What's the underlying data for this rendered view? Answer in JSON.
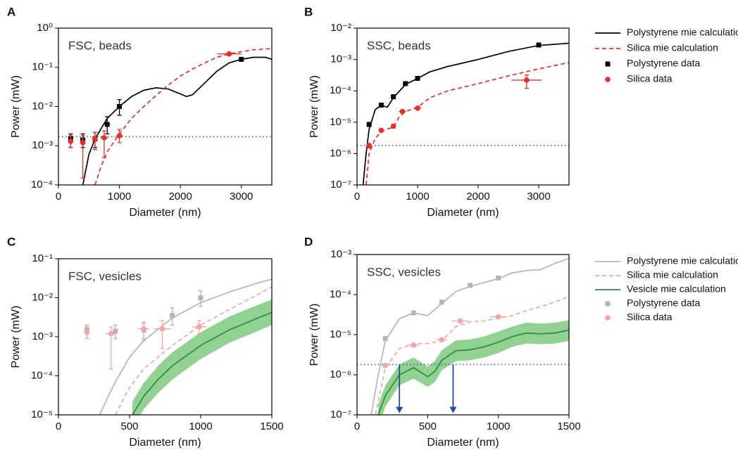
{
  "chart_data": [
    {
      "type": "line",
      "label": "A",
      "annotation": "FSC, beads",
      "xlabel": "Diameter (nm)",
      "ylabel": "Power (mW)",
      "xlim": [
        0,
        3500
      ],
      "xticks": [
        0,
        1000,
        2000,
        3000
      ],
      "log_y": true,
      "ylim": [
        0.0001,
        1
      ],
      "yticks": [
        {
          "value": 0.0001,
          "label": "10⁻⁴"
        },
        {
          "value": 0.001,
          "label": "10⁻³"
        },
        {
          "value": 0.01,
          "label": "10⁻²"
        },
        {
          "value": 0.1,
          "label": "10⁻¹"
        },
        {
          "value": 1,
          "label": "10⁰"
        }
      ],
      "reference_line": {
        "value": 0.0017,
        "color": "#3b5ba5"
      },
      "series": [
        {
          "mode": "line",
          "color": "#000000",
          "x": [
            400,
            500,
            600,
            800,
            1000,
            1200,
            1400,
            1600,
            1800,
            2000,
            2100,
            2200,
            2400,
            2600,
            2800,
            3000,
            3200,
            3400,
            3500
          ],
          "values": [
            0.0001,
            0.0006,
            0.0015,
            0.005,
            0.01,
            0.018,
            0.026,
            0.03,
            0.028,
            0.021,
            0.018,
            0.02,
            0.04,
            0.08,
            0.13,
            0.16,
            0.18,
            0.18,
            0.16
          ]
        },
        {
          "mode": "line",
          "dash": true,
          "color": "#e8302a",
          "x": [
            600,
            700,
            800,
            1000,
            1200,
            1400,
            1600,
            1800,
            2000,
            2200,
            2400,
            2600,
            2800,
            3000,
            3200,
            3500
          ],
          "values": [
            0.0001,
            0.0003,
            0.0007,
            0.002,
            0.005,
            0.01,
            0.019,
            0.035,
            0.06,
            0.09,
            0.13,
            0.18,
            0.22,
            0.25,
            0.28,
            0.3
          ]
        },
        {
          "mode": "markers",
          "marker": "square",
          "color": "#000000",
          "x": [
            200,
            400,
            600,
            800,
            1000,
            3000
          ],
          "values": [
            0.0015,
            0.0014,
            0.0015,
            0.0035,
            0.01,
            0.16
          ],
          "y_low": [
            0.0009,
            0.0009,
            0.0009,
            0.002,
            0.006,
            0.15
          ],
          "y_high": [
            0.002,
            0.002,
            0.0022,
            0.0055,
            0.015,
            0.17
          ]
        },
        {
          "mode": "markers",
          "marker": "circle",
          "color": "#e8302a",
          "x": [
            200,
            400,
            600,
            750,
            1000,
            2800
          ],
          "values": [
            0.0013,
            0.0012,
            0.0015,
            0.0016,
            0.0018,
            0.22
          ],
          "y_low": [
            0.0009,
            0.00015,
            0.0008,
            0.0005,
            0.0012,
            0.2
          ],
          "y_high": [
            0.0018,
            0.0018,
            0.0022,
            0.0024,
            0.0026,
            0.24
          ],
          "x_err": [
            20,
            20,
            30,
            60,
            50,
            200
          ]
        }
      ]
    },
    {
      "type": "line",
      "label": "B",
      "annotation": "SSC, beads",
      "xlabel": "Diameter (nm)",
      "ylabel": "Power (mW)",
      "xlim": [
        0,
        3500
      ],
      "xticks": [
        0,
        1000,
        2000,
        3000
      ],
      "log_y": true,
      "ylim": [
        1e-07,
        0.01
      ],
      "yticks": [
        {
          "value": 1e-07,
          "label": "10⁻⁷"
        },
        {
          "value": 1e-06,
          "label": "10⁻⁶"
        },
        {
          "value": 1e-05,
          "label": "10⁻⁵"
        },
        {
          "value": 0.0001,
          "label": "10⁻⁴"
        },
        {
          "value": 0.001,
          "label": "10⁻³"
        },
        {
          "value": 0.01,
          "label": "10⁻²"
        }
      ],
      "reference_line": {
        "value": 1.8e-06,
        "color": "#3b5ba5"
      },
      "legend": "outside right",
      "series": [
        {
          "name": "Polystyrene mie calculation",
          "mode": "line",
          "color": "#000000",
          "x": [
            100,
            150,
            200,
            300,
            400,
            500,
            600,
            800,
            1000,
            1200,
            1500,
            2000,
            2500,
            3000,
            3500
          ],
          "values": [
            1e-07,
            1e-06,
            6e-06,
            2.5e-05,
            3.5e-05,
            3e-05,
            6e-05,
            0.00016,
            0.00025,
            0.0004,
            0.0006,
            0.001,
            0.0018,
            0.0028,
            0.0033
          ]
        },
        {
          "name": "Silica mie calculation",
          "mode": "line",
          "dash": true,
          "color": "#e8302a",
          "x": [
            150,
            200,
            300,
            400,
            500,
            600,
            700,
            800,
            1000,
            1200,
            1500,
            2000,
            2500,
            3000,
            3500
          ],
          "values": [
            1e-07,
            1e-06,
            3e-06,
            5e-06,
            6e-06,
            7e-06,
            1.5e-05,
            2.2e-05,
            3e-05,
            6e-05,
            0.0001,
            0.00017,
            0.0003,
            0.0005,
            0.0008
          ]
        },
        {
          "name": "Polystyrene data",
          "mode": "markers",
          "marker": "square",
          "color": "#000000",
          "x": [
            200,
            400,
            600,
            800,
            1000,
            3000
          ],
          "values": [
            8.5e-06,
            3.5e-05,
            6.5e-05,
            0.00017,
            0.00025,
            0.0029
          ]
        },
        {
          "name": "Silica data",
          "mode": "markers",
          "marker": "circle",
          "color": "#e8302a",
          "x": [
            200,
            400,
            600,
            750,
            1000,
            2800
          ],
          "values": [
            1.8e-06,
            5.5e-06,
            7.5e-06,
            2.2e-05,
            2.8e-05,
            0.00022
          ],
          "y_low": [
            1.5e-06,
            5e-06,
            6.5e-06,
            2e-05,
            2.6e-05,
            0.00012
          ],
          "y_high": [
            2.1e-06,
            6e-06,
            8.5e-06,
            2.4e-05,
            3e-05,
            0.00032
          ],
          "x_err": [
            20,
            30,
            30,
            60,
            60,
            250
          ]
        }
      ]
    },
    {
      "type": "line",
      "label": "C",
      "annotation": "FSC, vesicles",
      "xlabel": "Diameter (nm)",
      "ylabel": "Power (mW)",
      "xlim": [
        0,
        1500
      ],
      "xticks": [
        0,
        500,
        1000,
        1500
      ],
      "log_y": true,
      "ylim": [
        1e-05,
        0.1
      ],
      "yticks": [
        {
          "value": 1e-05,
          "label": "10⁻⁵"
        },
        {
          "value": 0.0001,
          "label": "10⁻⁴"
        },
        {
          "value": 0.001,
          "label": "10⁻³"
        },
        {
          "value": 0.01,
          "label": "10⁻²"
        },
        {
          "value": 0.1,
          "label": "10⁻¹"
        }
      ],
      "series": [
        {
          "mode": "line",
          "color": "#b5b5b5",
          "x": [
            290,
            350,
            400,
            500,
            600,
            800,
            1000,
            1200,
            1400,
            1500
          ],
          "values": [
            1e-05,
            3e-05,
            7e-05,
            0.0003,
            0.0008,
            0.003,
            0.0075,
            0.014,
            0.024,
            0.03
          ]
        },
        {
          "mode": "line",
          "dash": true,
          "color": "#f4a5a5",
          "x": [
            400,
            500,
            600,
            800,
            1000,
            1200,
            1400,
            1500
          ],
          "values": [
            1e-05,
            5e-05,
            0.00015,
            0.0006,
            0.002,
            0.005,
            0.012,
            0.019
          ]
        },
        {
          "mode": "line",
          "color": "#2e8b3e",
          "band_color": "#6cc26c",
          "x": [
            520,
            600,
            700,
            800,
            1000,
            1200,
            1400,
            1500
          ],
          "values": [
            1e-05,
            3e-05,
            8e-05,
            0.00018,
            0.0006,
            0.0015,
            0.003,
            0.0042
          ],
          "lower": [
            4.5e-06,
            1.4e-05,
            3.6e-05,
            8e-05,
            0.00027,
            0.0007,
            0.0014,
            0.002
          ],
          "upper": [
            2.2e-05,
            6.6e-05,
            0.00018,
            0.0004,
            0.0013,
            0.0033,
            0.0065,
            0.009
          ]
        },
        {
          "mode": "markers",
          "marker": "square",
          "color": "#b5b5b5",
          "x": [
            200,
            400,
            600,
            800,
            1000
          ],
          "values": [
            0.0015,
            0.0014,
            0.0015,
            0.0035,
            0.01
          ],
          "y_low": [
            0.0009,
            0.0009,
            0.0009,
            0.002,
            0.006
          ],
          "y_high": [
            0.002,
            0.002,
            0.0022,
            0.0055,
            0.015
          ]
        },
        {
          "mode": "markers",
          "marker": "circle",
          "color": "#f4a5a5",
          "x": [
            200,
            370,
            600,
            730,
            990
          ],
          "values": [
            0.0013,
            0.0012,
            0.0016,
            0.0016,
            0.0018
          ],
          "y_low": [
            0.0009,
            0.00015,
            0.0008,
            0.0005,
            0.0012
          ],
          "y_high": [
            0.0018,
            0.0018,
            0.0024,
            0.0026,
            0.0026
          ],
          "x_err": [
            10,
            40,
            40,
            60,
            50
          ]
        }
      ]
    },
    {
      "type": "line",
      "label": "D",
      "annotation": "SSC, vesicles",
      "xlabel": "Diameter (nm)",
      "ylabel": "Power (mW)",
      "xlim": [
        0,
        1500
      ],
      "xticks": [
        0,
        500,
        1000,
        1500
      ],
      "log_y": true,
      "ylim": [
        1e-07,
        0.001
      ],
      "yticks": [
        {
          "value": 1e-07,
          "label": "10⁻⁷"
        },
        {
          "value": 1e-06,
          "label": "10⁻⁶"
        },
        {
          "value": 1e-05,
          "label": "10⁻⁵"
        },
        {
          "value": 0.0001,
          "label": "10⁻⁴"
        },
        {
          "value": 0.001,
          "label": "10⁻³"
        }
      ],
      "reference_line": {
        "value": 1.8e-06,
        "color": "#3b5ba5"
      },
      "legend": "outside right",
      "arrows": {
        "color": "#1f4e9c",
        "x": [
          300,
          680
        ],
        "y_start": [
          1.8e-06,
          1.8e-06
        ],
        "y_end": [
          1.1e-07,
          1.1e-07
        ]
      },
      "series": [
        {
          "name": "Polystyrene mie calculation",
          "mode": "line",
          "color": "#b5b5b5",
          "x": [
            100,
            150,
            200,
            300,
            400,
            500,
            600,
            700,
            800,
            900,
            1000,
            1100,
            1200,
            1300,
            1400,
            1500
          ],
          "values": [
            1e-07,
            1e-06,
            7e-06,
            2.5e-05,
            3.5e-05,
            3e-05,
            6e-05,
            0.00012,
            0.00016,
            0.0002,
            0.00025,
            0.00035,
            0.0004,
            0.00042,
            0.0006,
            0.0008
          ]
        },
        {
          "name": "Silica mie calculation",
          "mode": "line",
          "dash": true,
          "color": "#f4a5a5",
          "x": [
            130,
            200,
            300,
            400,
            500,
            600,
            700,
            800,
            900,
            1000,
            1100,
            1200,
            1300,
            1400,
            1500
          ],
          "values": [
            1e-07,
            1.5e-06,
            4.5e-06,
            6e-06,
            6e-06,
            7e-06,
            1.6e-05,
            2.1e-05,
            2.2e-05,
            2.6e-05,
            3e-05,
            4e-05,
            5e-05,
            6.5e-05,
            9e-05
          ]
        },
        {
          "name": "Vesicle mie calculation",
          "mode": "line",
          "color": "#2e8b3e",
          "band_color": "#6cc26c",
          "x": [
            150,
            200,
            300,
            400,
            500,
            550,
            600,
            700,
            800,
            900,
            1000,
            1100,
            1200,
            1300,
            1400,
            1500
          ],
          "values": [
            1e-07,
            3e-07,
            1e-06,
            1.5e-06,
            9e-07,
            1.2e-06,
            2.3e-06,
            4e-06,
            4.2e-06,
            5e-06,
            6.5e-06,
            9e-06,
            1.1e-05,
            1.05e-05,
            1.1e-05,
            1.3e-05
          ],
          "lower": [
            5e-08,
            1.6e-07,
            5.5e-07,
            8e-07,
            5e-07,
            6.5e-07,
            1.3e-06,
            2.2e-06,
            2.3e-06,
            2.7e-06,
            3.5e-06,
            5e-06,
            6e-06,
            5.8e-06,
            6e-06,
            7e-06
          ],
          "upper": [
            1.8e-07,
            5.4e-07,
            1.8e-06,
            2.7e-06,
            1.6e-06,
            2.2e-06,
            4.1e-06,
            7.2e-06,
            7.6e-06,
            9e-06,
            1.2e-05,
            1.6e-05,
            2e-05,
            1.9e-05,
            2e-05,
            2.3e-05
          ]
        },
        {
          "name": "Polystyrene data",
          "mode": "markers",
          "marker": "square",
          "color": "#b5b5b5",
          "x": [
            200,
            400,
            600,
            800,
            1000
          ],
          "values": [
            8e-06,
            3.5e-05,
            6.5e-05,
            0.00017,
            0.00026
          ]
        },
        {
          "name": "Silica data",
          "mode": "markers",
          "marker": "circle",
          "color": "#f4a5a5",
          "x": [
            200,
            400,
            600,
            730,
            1000
          ],
          "values": [
            1.7e-06,
            5.5e-06,
            7.5e-06,
            2.2e-05,
            2.8e-05
          ],
          "x_err": [
            20,
            40,
            40,
            60,
            60
          ]
        }
      ]
    }
  ]
}
